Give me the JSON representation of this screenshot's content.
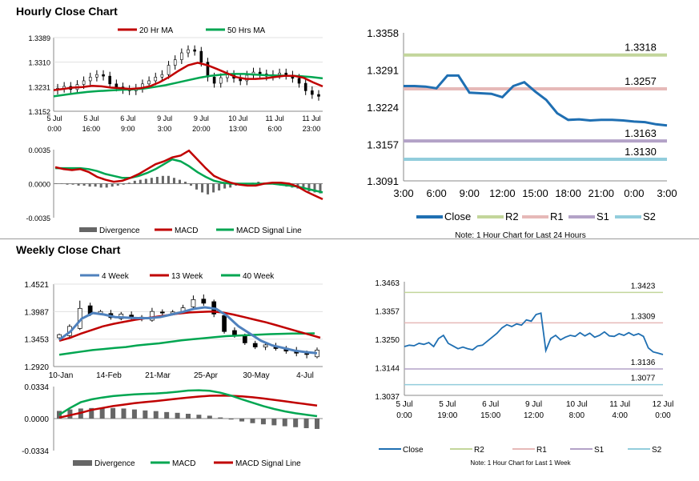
{
  "sections": {
    "hourly_title": "Hourly Close Chart",
    "weekly_title": "Weekly Close Chart"
  },
  "colors": {
    "close": "#1f6fb2",
    "ma20": "#c00000",
    "ma50": "#00a651",
    "r2": "#c3d69b",
    "r1": "#e6b9b8",
    "s1": "#b3a2c7",
    "s2": "#92cddc",
    "divergence": "#666666",
    "week4": "#4f81bd",
    "week13": "#c00000",
    "week40": "#00a651"
  },
  "chart_data": [
    {
      "id": "hourly_price",
      "type": "candlestick",
      "legend": [
        "20 Hr MA",
        "50 Hrs MA"
      ],
      "y_ticks": [
        "1.3389",
        "1.3310",
        "1.3231",
        "1.3152"
      ],
      "ylim": [
        1.3152,
        1.3389
      ],
      "x_ticks": [
        {
          "line1": "5 Jul",
          "line2": "0:00"
        },
        {
          "line1": "5 Jul",
          "line2": "16:00"
        },
        {
          "line1": "6 Jul",
          "line2": "9:00"
        },
        {
          "line1": "9 Jul",
          "line2": "3:00"
        },
        {
          "line1": "9 Jul",
          "line2": "20:00"
        },
        {
          "line1": "10 Jul",
          "line2": "13:00"
        },
        {
          "line1": "11 Jul",
          "line2": "6:00"
        },
        {
          "line1": "11 Jul",
          "line2": "23:00"
        }
      ],
      "closes": [
        1.3226,
        1.3232,
        1.3222,
        1.3238,
        1.325,
        1.3262,
        1.327,
        1.3265,
        1.324,
        1.323,
        1.3222,
        1.3218,
        1.3226,
        1.324,
        1.325,
        1.3262,
        1.327,
        1.33,
        1.3318,
        1.334,
        1.335,
        1.3345,
        1.331,
        1.3262,
        1.3242,
        1.326,
        1.327,
        1.3258,
        1.325,
        1.3268,
        1.3278,
        1.3272,
        1.3265,
        1.327,
        1.3275,
        1.3268,
        1.3258,
        1.3242,
        1.3218,
        1.3206,
        1.32
      ],
      "ma20": [
        1.322,
        1.3224,
        1.3228,
        1.323,
        1.3234,
        1.3232,
        1.3228,
        1.3226,
        1.3224,
        1.3226,
        1.3232,
        1.3245,
        1.3262,
        1.3282,
        1.33,
        1.3308,
        1.33,
        1.3288,
        1.3275,
        1.3262,
        1.3256,
        1.3256,
        1.3258,
        1.3262,
        1.3266,
        1.3266,
        1.326,
        1.3245,
        1.3232
      ],
      "ma50": [
        1.32,
        1.3205,
        1.321,
        1.3214,
        1.3217,
        1.3219,
        1.3221,
        1.3222,
        1.3225,
        1.323,
        1.3236,
        1.3244,
        1.3252,
        1.326,
        1.3266,
        1.327,
        1.3272,
        1.3272,
        1.327,
        1.3268,
        1.3267,
        1.3266,
        1.3265,
        1.3262,
        1.3258
      ]
    },
    {
      "id": "hourly_macd",
      "type": "bar+line",
      "legend": [
        "Divergence",
        "MACD",
        "MACD Signal Line"
      ],
      "y_ticks": [
        "0.0035",
        "0.0000",
        "-0.0035"
      ],
      "ylim": [
        -0.0035,
        0.0035
      ],
      "divergence": [
        0.0,
        0.0,
        -0.0001,
        -0.0001,
        -0.0002,
        -0.0002,
        -0.0003,
        -0.0003,
        -0.0004,
        -0.0004,
        -0.0003,
        -0.0002,
        -0.0001,
        0.0001,
        0.0003,
        0.0004,
        0.0005,
        0.0006,
        0.0007,
        0.0008,
        0.0008,
        0.0006,
        0.0004,
        0.0002,
        -0.0002,
        -0.0006,
        -0.0009,
        -0.0011,
        -0.0009,
        -0.0007,
        -0.0005,
        -0.0004,
        -0.0002,
        -0.0001,
        0.0,
        0.0001,
        0.0002,
        0.0001,
        0.0,
        -0.0001,
        -0.0002,
        -0.0003,
        -0.0004,
        -0.0005,
        -0.0006,
        -0.0008,
        -0.0009,
        -0.001
      ],
      "macd": [
        0.0017,
        0.0015,
        0.0014,
        0.0015,
        0.0012,
        0.0007,
        0.0004,
        0.0002,
        0.0003,
        0.0006,
        0.001,
        0.0015,
        0.002,
        0.0023,
        0.0027,
        0.0029,
        0.0034,
        0.0025,
        0.0016,
        0.0008,
        0.0004,
        0.0001,
        -0.0001,
        -0.0002,
        -0.0002,
        0.0,
        0.0001,
        0.0001,
        0.0,
        -0.0003,
        -0.0008,
        -0.0012,
        -0.0016
      ],
      "signal": [
        0.0016,
        0.0016,
        0.0016,
        0.0016,
        0.0015,
        0.0013,
        0.001,
        0.0008,
        0.0006,
        0.0006,
        0.0008,
        0.0011,
        0.0015,
        0.002,
        0.0025,
        0.0023,
        0.0018,
        0.0012,
        0.0007,
        0.0003,
        0.0001,
        0.0,
        0.0,
        0.0,
        0.0,
        0.0,
        0.0,
        -0.0001,
        -0.0002,
        -0.0003,
        -0.0005,
        -0.0007,
        -0.0009
      ]
    },
    {
      "id": "hourly_24h",
      "type": "line",
      "note": "Note: 1 Hour Chart for Last 24 Hours",
      "legend": [
        "Close",
        "R2",
        "R1",
        "S1",
        "S2"
      ],
      "y_ticks": [
        "1.3358",
        "1.3291",
        "1.3224",
        "1.3157",
        "1.3091"
      ],
      "ylim": [
        1.3091,
        1.3358
      ],
      "x_ticks": [
        "3:00",
        "6:00",
        "9:00",
        "12:00",
        "15:00",
        "18:00",
        "21:00",
        "0:00",
        "3:00"
      ],
      "levels": {
        "r2": 1.3318,
        "r1": 1.3257,
        "s1": 1.3163,
        "s2": 1.313
      },
      "level_labels": {
        "r2": "1.3318",
        "r1": "1.3257",
        "s1": "1.3163",
        "s2": "1.3130"
      },
      "close": [
        1.3262,
        1.3262,
        1.3261,
        1.3258,
        1.3281,
        1.3281,
        1.325,
        1.3249,
        1.3248,
        1.3242,
        1.3262,
        1.3269,
        1.3252,
        1.3237,
        1.3213,
        1.3201,
        1.3202,
        1.32,
        1.3201,
        1.3201,
        1.32,
        1.3198,
        1.3197,
        1.3193,
        1.3191
      ]
    },
    {
      "id": "weekly_price",
      "type": "candlestick",
      "legend": [
        "4 Week",
        "13 Week",
        "40 Week"
      ],
      "y_ticks": [
        "1.4521",
        "1.3987",
        "1.3453",
        "1.2920"
      ],
      "ylim": [
        1.292,
        1.4521
      ],
      "x_ticks": [
        "10-Jan",
        "14-Feb",
        "21-Mar",
        "25-Apr",
        "30-May",
        "4-Jul"
      ],
      "opens": [
        1.348,
        1.352,
        1.366,
        1.41,
        1.395,
        1.395,
        1.385,
        1.392,
        1.388,
        1.382,
        1.398,
        1.395,
        1.397,
        1.408,
        1.423,
        1.418,
        1.391,
        1.362,
        1.352,
        1.337,
        1.33,
        1.332,
        1.328,
        1.322,
        1.317,
        1.311
      ],
      "closes": [
        1.354,
        1.37,
        1.405,
        1.394,
        1.399,
        1.387,
        1.394,
        1.386,
        1.385,
        1.399,
        1.396,
        1.398,
        1.406,
        1.422,
        1.415,
        1.394,
        1.36,
        1.354,
        1.338,
        1.33,
        1.334,
        1.327,
        1.322,
        1.318,
        1.316,
        1.324
      ],
      "highs": [
        1.356,
        1.374,
        1.42,
        1.416,
        1.402,
        1.402,
        1.398,
        1.399,
        1.392,
        1.406,
        1.403,
        1.402,
        1.412,
        1.43,
        1.432,
        1.422,
        1.396,
        1.368,
        1.356,
        1.342,
        1.34,
        1.338,
        1.332,
        1.33,
        1.323,
        1.329
      ],
      "lows": [
        1.344,
        1.347,
        1.363,
        1.39,
        1.392,
        1.383,
        1.382,
        1.382,
        1.38,
        1.379,
        1.39,
        1.392,
        1.394,
        1.404,
        1.41,
        1.388,
        1.356,
        1.348,
        1.334,
        1.326,
        1.324,
        1.323,
        1.317,
        1.312,
        1.308,
        1.308
      ],
      "week4": [
        1.344,
        1.36,
        1.385,
        1.396,
        1.393,
        1.388,
        1.387,
        1.386,
        1.386,
        1.388,
        1.393,
        1.398,
        1.404,
        1.407,
        1.404,
        1.39,
        1.37,
        1.356,
        1.342,
        1.333,
        1.328,
        1.323,
        1.32,
        1.318
      ],
      "week13": [
        1.342,
        1.348,
        1.356,
        1.363,
        1.37,
        1.375,
        1.379,
        1.383,
        1.386,
        1.389,
        1.392,
        1.395,
        1.397,
        1.398,
        1.399,
        1.397,
        1.393,
        1.388,
        1.383,
        1.378,
        1.372,
        1.366,
        1.36,
        1.354,
        1.348
      ],
      "week40": [
        1.315,
        1.318,
        1.321,
        1.324,
        1.326,
        1.328,
        1.33,
        1.333,
        1.335,
        1.337,
        1.34,
        1.343,
        1.345,
        1.347,
        1.349,
        1.351,
        1.352,
        1.353,
        1.354,
        1.355,
        1.3555,
        1.356,
        1.356,
        1.3565
      ]
    },
    {
      "id": "weekly_macd",
      "type": "bar+line",
      "legend": [
        "Divergence",
        "MACD",
        "MACD Signal Line"
      ],
      "y_ticks": [
        "0.0334",
        "0.0000",
        "-0.0334"
      ],
      "ylim": [
        -0.0334,
        0.0334
      ],
      "divergence": [
        0.008,
        0.0095,
        0.0105,
        0.011,
        0.0112,
        0.011,
        0.0105,
        0.0095,
        0.0085,
        0.0078,
        0.0068,
        0.006,
        0.005,
        0.004,
        0.003,
        0.0012,
        -0.001,
        -0.003,
        -0.0048,
        -0.006,
        -0.007,
        -0.008,
        -0.009,
        -0.01,
        -0.0108
      ],
      "macd": [
        0.004,
        0.011,
        0.017,
        0.02,
        0.022,
        0.0235,
        0.0245,
        0.0252,
        0.0258,
        0.0262,
        0.027,
        0.028,
        0.0292,
        0.0296,
        0.029,
        0.027,
        0.024,
        0.02,
        0.0165,
        0.013,
        0.01,
        0.0075,
        0.0055,
        0.004,
        0.0025
      ],
      "signal": [
        0.001,
        0.0035,
        0.006,
        0.009,
        0.011,
        0.013,
        0.0145,
        0.016,
        0.0172,
        0.0183,
        0.0195,
        0.0208,
        0.022,
        0.023,
        0.0238,
        0.024,
        0.0238,
        0.0232,
        0.0222,
        0.021,
        0.0195,
        0.018,
        0.0165,
        0.015,
        0.0135
      ]
    },
    {
      "id": "weekly_1week",
      "type": "line",
      "note": "Note: 1 Hour Chart for Last 1 Week",
      "legend": [
        "Close",
        "R2",
        "R1",
        "S1",
        "S2"
      ],
      "y_ticks": [
        "1.3463",
        "1.3357",
        "1.3250",
        "1.3144",
        "1.3037"
      ],
      "ylim": [
        1.3037,
        1.3463
      ],
      "x_ticks": [
        {
          "line1": "5 Jul",
          "line2": "0:00"
        },
        {
          "line1": "5 Jul",
          "line2": "19:00"
        },
        {
          "line1": "6 Jul",
          "line2": "15:00"
        },
        {
          "line1": "9 Jul",
          "line2": "12:00"
        },
        {
          "line1": "10 Jul",
          "line2": "8:00"
        },
        {
          "line1": "11 Jul",
          "line2": "4:00"
        },
        {
          "line1": "12 Jul",
          "line2": "0:00"
        }
      ],
      "levels": {
        "r2": 1.3423,
        "r1": 1.3309,
        "s1": 1.3136,
        "s2": 1.3077
      },
      "level_labels": {
        "r2": "1.3423",
        "r1": "1.3309",
        "s1": "1.3136",
        "s2": "1.3077"
      },
      "close": [
        1.322,
        1.3225,
        1.3223,
        1.3232,
        1.3228,
        1.3235,
        1.322,
        1.325,
        1.3262,
        1.3232,
        1.3222,
        1.3212,
        1.3218,
        1.3212,
        1.3208,
        1.3222,
        1.3225,
        1.324,
        1.3255,
        1.327,
        1.329,
        1.3302,
        1.3295,
        1.3305,
        1.33,
        1.332,
        1.3315,
        1.334,
        1.3345,
        1.3205,
        1.325,
        1.3262,
        1.3245,
        1.3255,
        1.3262,
        1.3258,
        1.3272,
        1.326,
        1.327,
        1.3255,
        1.3262,
        1.3275,
        1.326,
        1.3258,
        1.3268,
        1.3262,
        1.3272,
        1.3262,
        1.3268,
        1.3258,
        1.3215,
        1.32,
        1.3195,
        1.319
      ]
    }
  ]
}
